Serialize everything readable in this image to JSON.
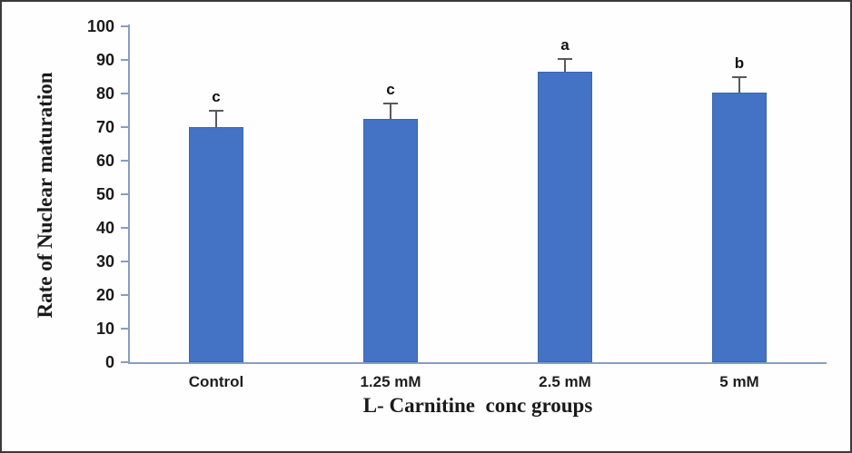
{
  "chart_data": {
    "type": "bar",
    "title": "",
    "xlabel": "L- Carnitine  conc groups",
    "ylabel": "Rate of Nuclear maturation",
    "categories": [
      "Control",
      "1.25 mM",
      "2.5 mM",
      "5 mM"
    ],
    "values": [
      70,
      72.4,
      86.5,
      80.3
    ],
    "errors": [
      4.9,
      4.6,
      3.8,
      4.6
    ],
    "sig_letters": [
      "c",
      "c",
      "a",
      "b"
    ],
    "ylim": [
      0,
      100
    ],
    "ytick_step": 10,
    "ytick_labels": [
      "0",
      "10",
      "20",
      "30",
      "40",
      "50",
      "60",
      "70",
      "80",
      "90",
      "100"
    ],
    "grid": false,
    "legend_position": "none",
    "bar_color": "#4472C4",
    "bar_edge_color": "#3866AE",
    "error_bar_color": "#595959",
    "axis_line_color": "#8A9CC0",
    "text_color": "#1a1a1a"
  }
}
